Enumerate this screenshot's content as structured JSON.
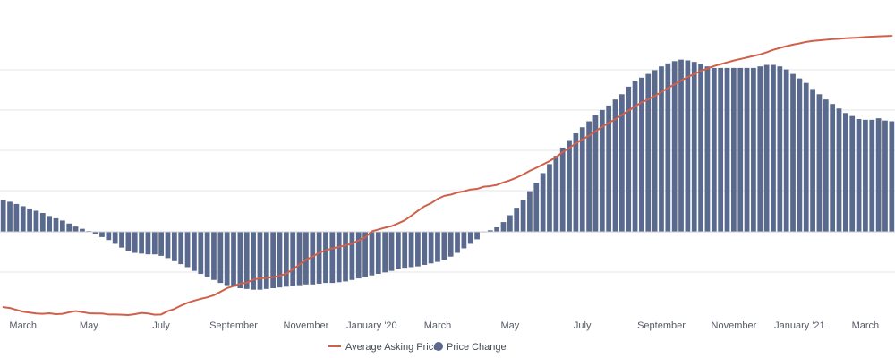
{
  "chart_data": {
    "type": "bar+line",
    "title": "",
    "xlabel": "",
    "ylabel": "",
    "grid": true,
    "legend_placement": "bottom-center",
    "x_tick_labels": [
      "March",
      "May",
      "July",
      "September",
      "November",
      "January '20",
      "March",
      "May",
      "July",
      "September",
      "November",
      "January '21",
      "March"
    ],
    "x_ticks_week_index": [
      3,
      13,
      24,
      35,
      46,
      56,
      66,
      77,
      88,
      100,
      111,
      121,
      131
    ],
    "colors": {
      "bars": "#5a6a8e",
      "line": "#d0604a",
      "grid": "#e4e4e4"
    },
    "y_hidden_range": [
      -100,
      220
    ],
    "series": [
      {
        "name": "Price Change",
        "kind": "bar",
        "values": [
          42,
          40,
          37,
          34,
          31,
          28,
          25,
          21,
          18,
          15,
          11,
          7,
          4,
          1,
          -3,
          -7,
          -11,
          -16,
          -21,
          -25,
          -28,
          -29,
          -30,
          -30,
          -32,
          -35,
          -39,
          -43,
          -47,
          -52,
          -56,
          -60,
          -64,
          -68,
          -71,
          -73,
          -75,
          -76,
          -77,
          -77,
          -76,
          -75,
          -74,
          -73,
          -72,
          -71,
          -70,
          -70,
          -69,
          -68,
          -68,
          -67,
          -66,
          -64,
          -62,
          -60,
          -58,
          -56,
          -54,
          -52,
          -50,
          -49,
          -47,
          -46,
          -44,
          -42,
          -40,
          -37,
          -33,
          -28,
          -22,
          -16,
          -10,
          0,
          2,
          6,
          13,
          22,
          32,
          42,
          54,
          65,
          78,
          90,
          101,
          112,
          122,
          131,
          139,
          147,
          155,
          162,
          168,
          176,
          183,
          193,
          200,
          205,
          210,
          215,
          220,
          224,
          227,
          229,
          228,
          226,
          223,
          220,
          218,
          218,
          218,
          218,
          218,
          218,
          218,
          220,
          222,
          222,
          220,
          216,
          210,
          204,
          198,
          190,
          183,
          176,
          170,
          164,
          158,
          154,
          150,
          149,
          149,
          151,
          148,
          147
        ]
      },
      {
        "name": "Average Asking Price",
        "kind": "line",
        "values": [
          28,
          25,
          19,
          13,
          10,
          7,
          6,
          8,
          5,
          6,
          11,
          15,
          12,
          8,
          7,
          7,
          4,
          4,
          3,
          2,
          5,
          9,
          7,
          3,
          4,
          15,
          22,
          33,
          42,
          49,
          55,
          60,
          67,
          78,
          90,
          97,
          105,
          108,
          118,
          122,
          124,
          126,
          130,
          138,
          151,
          167,
          183,
          193,
          206,
          214,
          220,
          225,
          230,
          236,
          246,
          256,
          276,
          282,
          288,
          293,
          302,
          312,
          327,
          343,
          358,
          368,
          382,
          392,
          396,
          403,
          407,
          413,
          415,
          422,
          424,
          428,
          436,
          443,
          452,
          462,
          474,
          484,
          495,
          506,
          519,
          535,
          549,
          564,
          577,
          589,
          603,
          618,
          631,
          643,
          657,
          671,
          685,
          698,
          708,
          719,
          732,
          745,
          757,
          770,
          781,
          791,
          801,
          809,
          817,
          823,
          829,
          835,
          840,
          845,
          850,
          855,
          862,
          870,
          876,
          882,
          887,
          891,
          896,
          899,
          901,
          903,
          905,
          906,
          908,
          909,
          910,
          912,
          913,
          914,
          915,
          916
        ]
      }
    ]
  },
  "legend": {
    "items": [
      {
        "label": "Average Asking Price",
        "color": "#d0604a",
        "marker": "line"
      },
      {
        "label": "Price Change",
        "color": "#5a6a8e",
        "marker": "circle"
      }
    ]
  }
}
